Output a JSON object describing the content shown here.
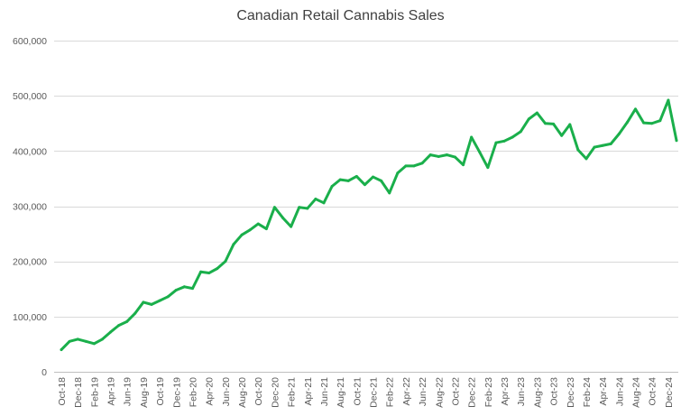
{
  "chart_data": {
    "type": "line",
    "title": "Canadian Retail Cannabis Sales",
    "xlabel": "",
    "ylabel": "",
    "ylim": [
      0,
      600000
    ],
    "yticks": [
      0,
      100000,
      200000,
      300000,
      400000,
      500000,
      600000
    ],
    "ytick_labels": [
      "0",
      "100,000",
      "200,000",
      "300,000",
      "400,000",
      "500,000",
      "600,000"
    ],
    "grid": true,
    "legend": "none",
    "colors": {
      "series": "#1aaf4b",
      "grid": "#d9d9d9",
      "text": "#595959"
    },
    "categories": [
      "Oct-18",
      "Nov-18",
      "Dec-18",
      "Jan-19",
      "Feb-19",
      "Mar-19",
      "Apr-19",
      "May-19",
      "Jun-19",
      "Jul-19",
      "Aug-19",
      "Sep-19",
      "Oct-19",
      "Nov-19",
      "Dec-19",
      "Jan-20",
      "Feb-20",
      "Mar-20",
      "Apr-20",
      "May-20",
      "Jun-20",
      "Jul-20",
      "Aug-20",
      "Sep-20",
      "Oct-20",
      "Nov-20",
      "Dec-20",
      "Jan-21",
      "Feb-21",
      "Mar-21",
      "Apr-21",
      "May-21",
      "Jun-21",
      "Jul-21",
      "Aug-21",
      "Sep-21",
      "Oct-21",
      "Nov-21",
      "Dec-21",
      "Jan-22",
      "Feb-22",
      "Mar-22",
      "Apr-22",
      "May-22",
      "Jun-22",
      "Jul-22",
      "Aug-22",
      "Sep-22",
      "Oct-22",
      "Nov-22",
      "Dec-22",
      "Jan-23",
      "Feb-23",
      "Mar-23",
      "Apr-23",
      "May-23",
      "Jun-23",
      "Jul-23",
      "Aug-23",
      "Sep-23",
      "Oct-23",
      "Nov-23",
      "Dec-23",
      "Jan-24",
      "Feb-24",
      "Mar-24",
      "Apr-24",
      "May-24",
      "Jun-24",
      "Jul-24",
      "Aug-24",
      "Sep-24",
      "Oct-24",
      "Nov-24",
      "Dec-24",
      "Jan-25"
    ],
    "tick_labels": [
      "Oct-18",
      "Dec-18",
      "Feb-19",
      "Apr-19",
      "Jun-19",
      "Aug-19",
      "Oct-19",
      "Dec-19",
      "Feb-20",
      "Apr-20",
      "Jun-20",
      "Aug-20",
      "Oct-20",
      "Dec-20",
      "Feb-21",
      "Apr-21",
      "Jun-21",
      "Aug-21",
      "Oct-21",
      "Dec-21",
      "Feb-22",
      "Apr-22",
      "Jun-22",
      "Aug-22",
      "Oct-22",
      "Dec-22",
      "Feb-23",
      "Apr-23",
      "Jun-23",
      "Aug-23",
      "Oct-23",
      "Dec-23",
      "Feb-24",
      "Apr-24",
      "Jun-24",
      "Aug-24",
      "Oct-24",
      "Dec-24"
    ],
    "series": [
      {
        "values": [
          40000,
          55000,
          59000,
          55000,
          51000,
          59000,
          72000,
          84000,
          91000,
          106000,
          126000,
          122000,
          129000,
          136000,
          148000,
          154000,
          151000,
          181000,
          179000,
          187000,
          200000,
          231000,
          248000,
          257000,
          268000,
          259000,
          298000,
          279000,
          263000,
          298000,
          296000,
          313000,
          306000,
          336000,
          348000,
          346000,
          354000,
          339000,
          353000,
          346000,
          324000,
          360000,
          373000,
          373000,
          378000,
          393000,
          390000,
          393000,
          389000,
          375000,
          425000,
          398000,
          370000,
          415000,
          418000,
          425000,
          435000,
          458000,
          469000,
          450000,
          449000,
          428000,
          448000,
          402000,
          386000,
          407000,
          410000,
          413000,
          431000,
          452000,
          476000,
          451000,
          450000,
          455000,
          492000,
          419000
        ]
      }
    ]
  }
}
